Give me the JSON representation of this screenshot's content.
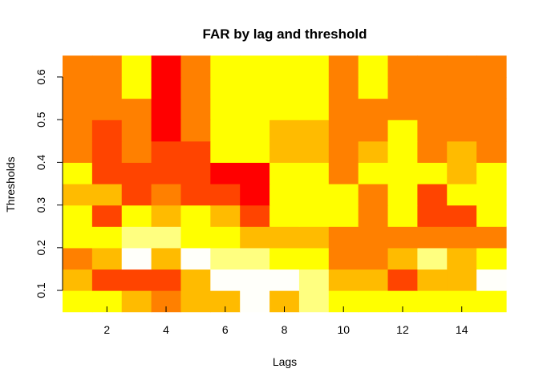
{
  "chart_data": {
    "type": "heatmap",
    "title": "FAR by lag and threshold",
    "xlabel": "Lags",
    "ylabel": "Thresholds",
    "x": [
      1,
      2,
      3,
      4,
      5,
      6,
      7,
      8,
      9,
      10,
      11,
      12,
      13,
      14,
      15
    ],
    "y": [
      0.075,
      0.125,
      0.175,
      0.225,
      0.275,
      0.325,
      0.375,
      0.425,
      0.475,
      0.525,
      0.575,
      0.625
    ],
    "xlim": [
      0.5,
      15.5
    ],
    "ylim": [
      0.0625,
      0.6375
    ],
    "x_ticks": [
      2,
      4,
      6,
      8,
      10,
      12,
      14
    ],
    "y_ticks": [
      0.1,
      0.2,
      0.3,
      0.4,
      0.5,
      0.6
    ],
    "color_palette": [
      "#ff0000",
      "#ff4400",
      "#ff8000",
      "#ffbb00",
      "#ffff00",
      "#ffff80",
      "#fffffa"
    ],
    "values": [
      [
        4,
        4,
        3,
        2,
        3,
        3,
        6,
        3,
        5,
        4,
        4,
        4,
        4,
        4,
        4
      ],
      [
        3,
        1,
        1,
        1,
        3,
        6,
        6,
        6,
        5,
        3,
        3,
        1,
        3,
        3,
        6
      ],
      [
        2,
        3,
        6,
        3,
        6,
        5,
        5,
        4,
        4,
        2,
        2,
        3,
        5,
        3,
        4
      ],
      [
        4,
        4,
        5,
        5,
        4,
        4,
        3,
        3,
        3,
        2,
        2,
        2,
        2,
        2,
        2
      ],
      [
        4,
        1,
        4,
        3,
        4,
        3,
        1,
        4,
        4,
        4,
        2,
        4,
        1,
        1,
        4
      ],
      [
        3,
        3,
        1,
        2,
        1,
        1,
        0,
        4,
        4,
        4,
        2,
        4,
        1,
        4,
        4
      ],
      [
        4,
        1,
        1,
        1,
        1,
        0,
        0,
        4,
        4,
        2,
        4,
        4,
        4,
        3,
        4
      ],
      [
        2,
        1,
        2,
        1,
        1,
        4,
        4,
        3,
        3,
        2,
        3,
        4,
        2,
        3,
        2
      ],
      [
        2,
        1,
        2,
        0,
        2,
        4,
        4,
        3,
        3,
        2,
        2,
        4,
        2,
        2,
        2
      ],
      [
        2,
        2,
        2,
        0,
        2,
        4,
        4,
        4,
        4,
        2,
        2,
        2,
        2,
        2,
        2
      ],
      [
        2,
        2,
        4,
        0,
        2,
        4,
        4,
        4,
        4,
        2,
        4,
        2,
        2,
        2,
        2
      ],
      [
        2,
        2,
        4,
        0,
        2,
        4,
        4,
        4,
        4,
        2,
        4,
        2,
        2,
        2,
        2
      ]
    ]
  }
}
